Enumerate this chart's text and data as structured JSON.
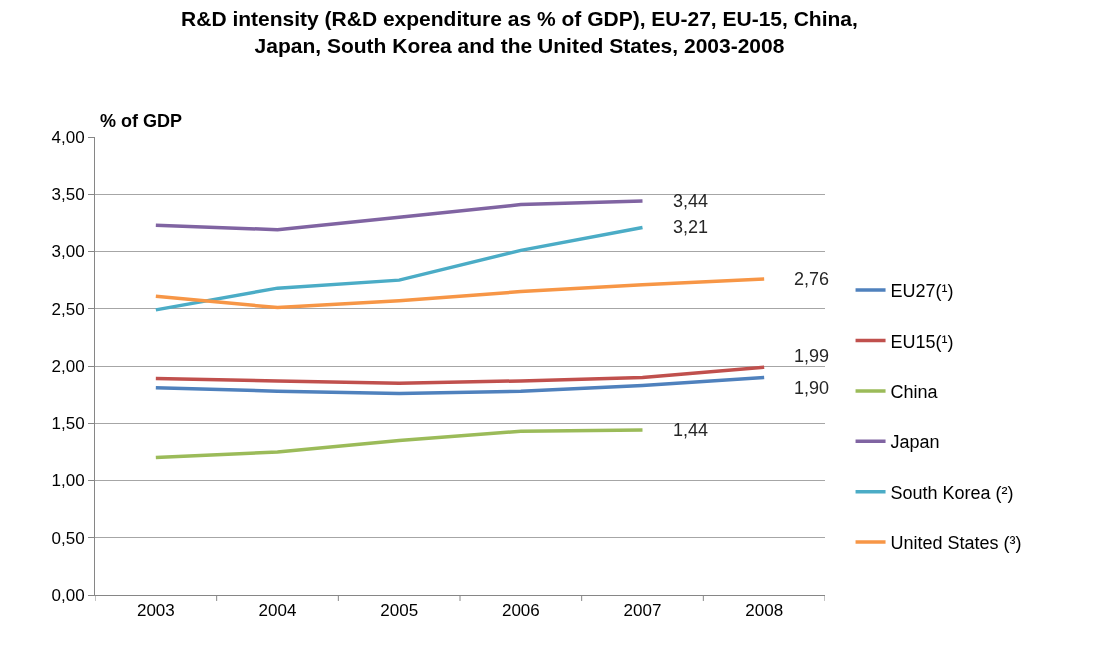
{
  "chart_data": {
    "type": "line",
    "title": "R&D intensity (R&D expenditure as % of GDP), EU-27, EU-15, China,\nJapan, South Korea and the United States, 2003-2008",
    "ylabel": "% of GDP",
    "categories": [
      "2003",
      "2004",
      "2005",
      "2006",
      "2007",
      "2008"
    ],
    "series": [
      {
        "name": "EU27(¹)",
        "color": "#4f81bd",
        "values": [
          1.81,
          1.78,
          1.76,
          1.78,
          1.83,
          1.9
        ],
        "value_labels": [
          null,
          null,
          null,
          null,
          null,
          "1,90"
        ]
      },
      {
        "name": "EU15(¹)",
        "color": "#c0504d",
        "values": [
          1.89,
          1.87,
          1.85,
          1.87,
          1.9,
          1.99
        ],
        "value_labels": [
          null,
          null,
          null,
          null,
          null,
          "1,99"
        ]
      },
      {
        "name": "China",
        "color": "#9bbb59",
        "values": [
          1.2,
          1.25,
          1.35,
          1.43,
          1.44,
          null
        ],
        "value_labels": [
          null,
          null,
          null,
          null,
          "1,44",
          null
        ]
      },
      {
        "name": "Japan",
        "color": "#8064a2",
        "values": [
          3.23,
          3.19,
          3.3,
          3.41,
          3.44,
          null
        ],
        "value_labels": [
          null,
          null,
          null,
          null,
          "3,44",
          null
        ]
      },
      {
        "name": "South Korea (²)",
        "color": "#4bacc6",
        "values": [
          2.49,
          2.68,
          2.75,
          3.01,
          3.21,
          null
        ],
        "value_labels": [
          null,
          null,
          null,
          null,
          "3,21",
          null
        ]
      },
      {
        "name": "United States (³)",
        "color": "#f79646",
        "values": [
          2.61,
          2.51,
          2.57,
          2.65,
          2.71,
          2.76
        ],
        "value_labels": [
          null,
          null,
          null,
          null,
          null,
          "2,76"
        ]
      }
    ],
    "ylim": [
      0,
      4
    ],
    "yticks": [
      {
        "value": 0,
        "label": "0,00"
      },
      {
        "value": 0.5,
        "label": "0,50"
      },
      {
        "value": 1,
        "label": "1,00"
      },
      {
        "value": 1.5,
        "label": "1,50"
      },
      {
        "value": 2,
        "label": "2,00"
      },
      {
        "value": 2.5,
        "label": "2,50"
      },
      {
        "value": 3,
        "label": "3,00"
      },
      {
        "value": 3.5,
        "label": "3,50"
      },
      {
        "value": 4,
        "label": "4,00"
      }
    ],
    "grid": "y",
    "legend": "right",
    "line_style": "solid"
  }
}
